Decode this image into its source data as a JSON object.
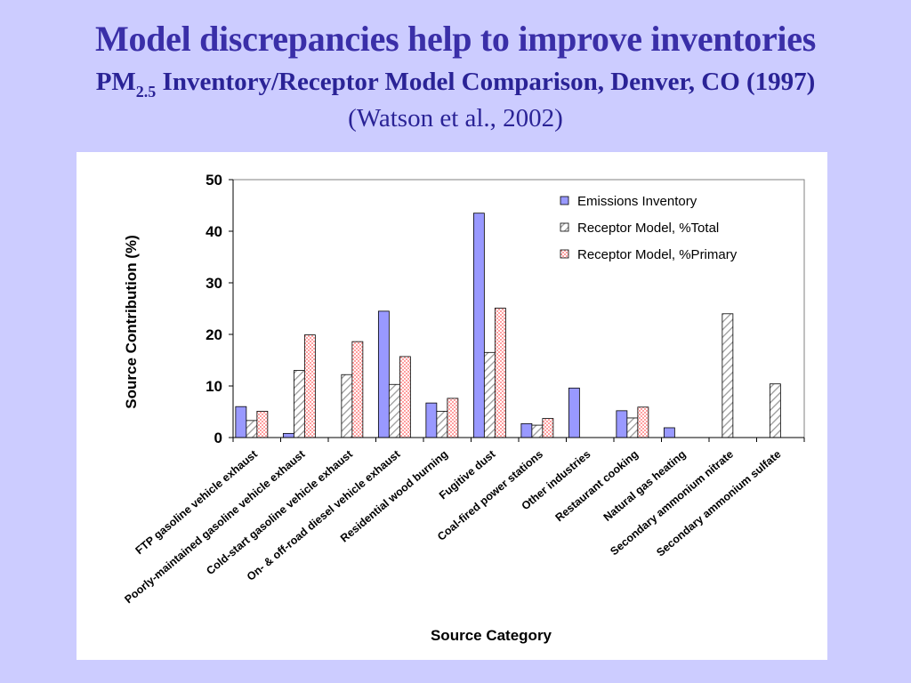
{
  "header": {
    "title": "Model discrepancies help to improve inventories",
    "subtitle_prefix": "PM",
    "subtitle_sub": "2.5",
    "subtitle_rest": " Inventory/Receptor Model Comparison, Denver, CO (1997)",
    "citation": "(Watson et al., 2002)"
  },
  "colors": {
    "background": "#ccccff",
    "title": "#3a2fa8",
    "emissions": "#9999ff",
    "receptor_total_hatch": "#999999",
    "receptor_primary_fill": "#ff9999"
  },
  "chart_data": {
    "type": "bar",
    "xlabel": "Source Category",
    "ylabel": "Source Contribution (%)",
    "ylim": [
      0,
      50
    ],
    "yticks": [
      "0",
      "10",
      "20",
      "30",
      "40",
      "50"
    ],
    "legend_position": "top-right",
    "categories": [
      "FTP gasoline vehicle exhaust",
      "Poorly-maintained gasoline vehicle exhaust",
      "Cold-start gasoline vehicle exhaust",
      "On- & off-road diesel vehicle exhaust",
      "Residential wood burning",
      "Fugitive dust",
      "Coal-fired power stations",
      "Other industries",
      "Restaurant cooking",
      "Natural gas heating",
      "Secondary ammonium nitrate",
      "Secondary ammonium sulfate"
    ],
    "series": [
      {
        "name": "Emissions Inventory",
        "values": [
          6.0,
          0.8,
          0,
          24.5,
          6.7,
          43.5,
          2.7,
          9.6,
          5.2,
          1.9,
          0,
          0
        ]
      },
      {
        "name": "Receptor Model, %Total",
        "values": [
          3.3,
          13.0,
          12.2,
          10.3,
          5.1,
          16.5,
          2.4,
          0,
          3.8,
          0,
          24.0,
          10.4
        ]
      },
      {
        "name": "Receptor Model, %Primary",
        "values": [
          5.1,
          19.9,
          18.6,
          15.7,
          7.6,
          25.1,
          3.7,
          0,
          5.9,
          0,
          0,
          0
        ]
      }
    ]
  }
}
